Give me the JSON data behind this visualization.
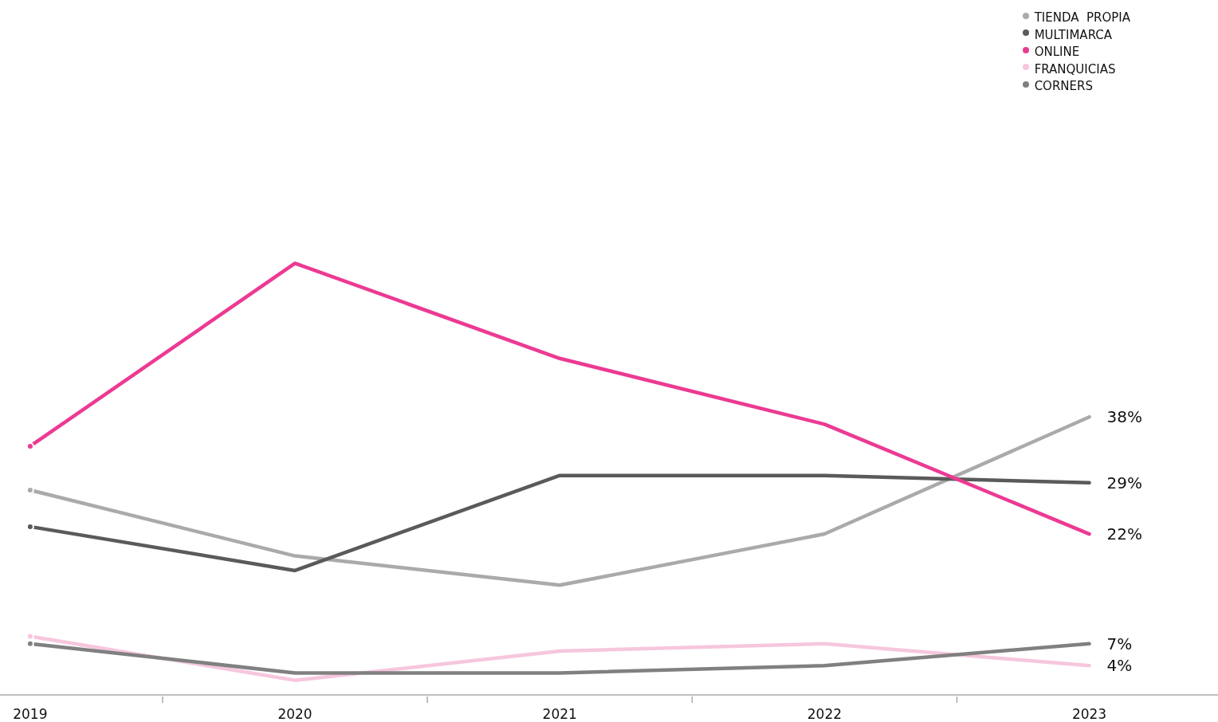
{
  "chart_data": {
    "type": "line",
    "categories": [
      "2019",
      "2020",
      "2021",
      "2022",
      "2023"
    ],
    "ylim": [
      0,
      95
    ],
    "legend": "top right",
    "tick_labels": "x",
    "series": [
      {
        "name": "TIENDA  PROPIA",
        "color": "#aaaaaa",
        "values": [
          28,
          19,
          15,
          22,
          38
        ],
        "value_labels": [
          null,
          null,
          null,
          null,
          "38%"
        ]
      },
      {
        "name": "MULTIMARCA",
        "color": "#5a5a5a",
        "values": [
          23,
          17,
          30,
          30,
          29
        ],
        "value_labels": [
          null,
          null,
          null,
          null,
          "29%"
        ]
      },
      {
        "name": "ONLINE",
        "color": "#ec3a93",
        "values": [
          34,
          59,
          46,
          37,
          22
        ],
        "value_labels": [
          null,
          null,
          null,
          null,
          "22%"
        ]
      },
      {
        "name": "FRANQUICIAS",
        "color": "#f6c6de",
        "values": [
          8,
          2,
          6,
          7,
          4
        ],
        "value_labels": [
          null,
          null,
          null,
          null,
          "4%"
        ]
      },
      {
        "name": "CORNERS",
        "color": "#808080",
        "values": [
          7,
          3,
          3,
          4,
          7
        ],
        "value_labels": [
          null,
          null,
          null,
          null,
          "7%"
        ]
      }
    ]
  }
}
